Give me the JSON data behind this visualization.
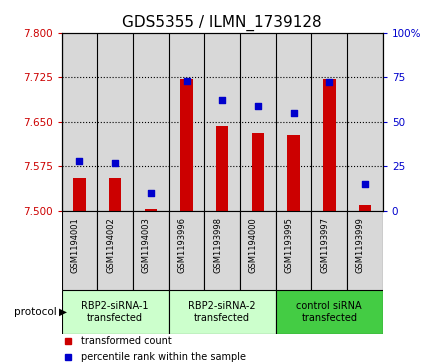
{
  "title": "GDS5355 / ILMN_1739128",
  "samples": [
    "GSM1194001",
    "GSM1194002",
    "GSM1194003",
    "GSM1193996",
    "GSM1193998",
    "GSM1194000",
    "GSM1193995",
    "GSM1193997",
    "GSM1193999"
  ],
  "bar_values": [
    7.555,
    7.555,
    7.503,
    7.722,
    7.643,
    7.631,
    7.628,
    7.722,
    7.51
  ],
  "dot_values": [
    28,
    27,
    10,
    73,
    62,
    59,
    55,
    72,
    15
  ],
  "ymin": 7.5,
  "ymax": 7.8,
  "y_ticks": [
    7.5,
    7.575,
    7.65,
    7.725,
    7.8
  ],
  "y2min": 0,
  "y2max": 100,
  "y2_ticks": [
    0,
    25,
    50,
    75,
    100
  ],
  "bar_color": "#cc0000",
  "dot_color": "#0000cc",
  "groups": [
    {
      "label": "RBP2-siRNA-1\ntransfected",
      "start": 0,
      "end": 3,
      "color": "#ccffcc"
    },
    {
      "label": "RBP2-siRNA-2\ntransfected",
      "start": 3,
      "end": 6,
      "color": "#ccffcc"
    },
    {
      "label": "control siRNA\ntransfected",
      "start": 6,
      "end": 9,
      "color": "#44cc44"
    }
  ],
  "protocol_label": "protocol",
  "legend_bar_label": "transformed count",
  "legend_dot_label": "percentile rank within the sample",
  "sample_bg_color": "#d8d8d8",
  "title_fontsize": 11,
  "tick_fontsize": 7.5,
  "sample_fontsize": 6,
  "group_fontsize": 7,
  "legend_fontsize": 7,
  "proto_fontsize": 7.5
}
